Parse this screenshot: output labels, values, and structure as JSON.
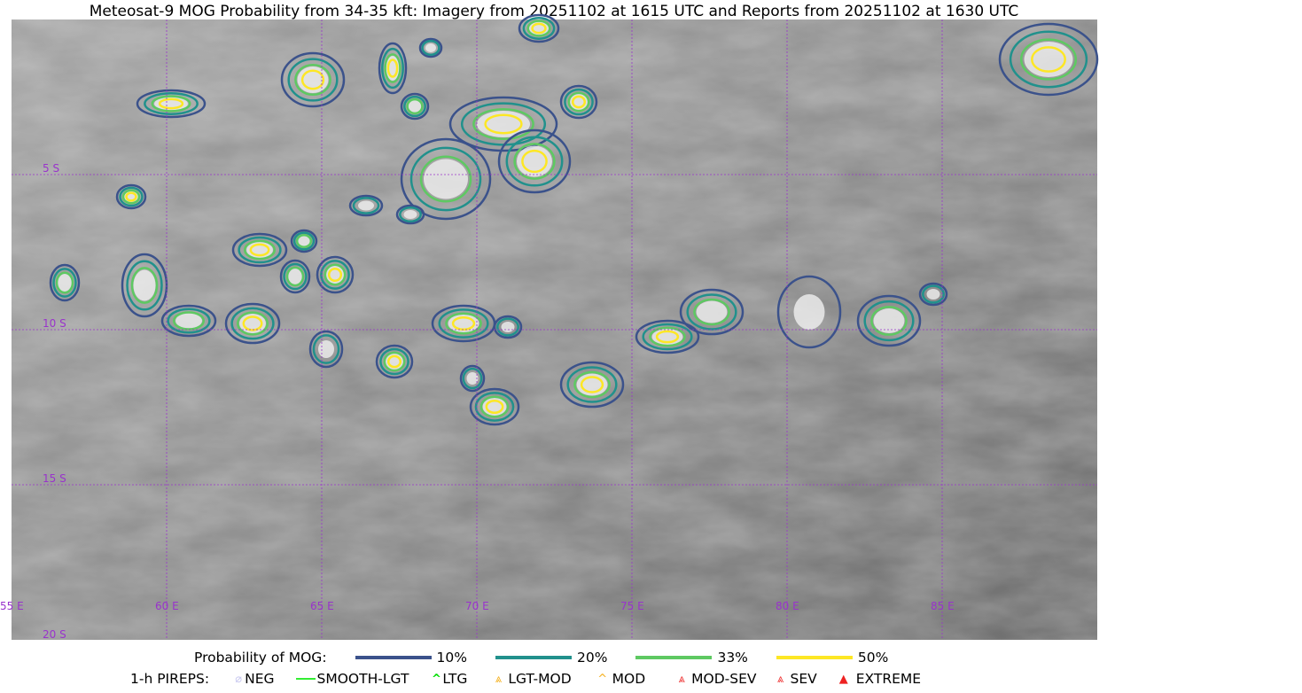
{
  "title": "Meteosat-9 MOG Probability from 34-35 kft: Imagery from 20251102 at 1615 UTC and Reports from 20251102 at 1630 UTC",
  "map": {
    "lon_labels": [
      "55 E",
      "60 E",
      "65 E",
      "70 E",
      "75 E",
      "80 E",
      "85 E"
    ],
    "lat_labels": [
      "5 S",
      "10 S",
      "15 S",
      "20 S"
    ],
    "grid_color": "#9933cc"
  },
  "legend": {
    "probability_label": "Probability of MOG:",
    "levels": [
      {
        "label": "10%",
        "color": "#3b528b"
      },
      {
        "label": "20%",
        "color": "#21918c"
      },
      {
        "label": "33%",
        "color": "#5ec962"
      },
      {
        "label": "50%",
        "color": "#fde725"
      }
    ],
    "pireps_label": "1-h PIREPS:",
    "pireps": [
      {
        "label": "NEG",
        "icon": "neg-icon",
        "color": "#c8c8f0"
      },
      {
        "label": "SMOOTH-LGT",
        "icon": "smooth-lgt-line-icon",
        "color": "#33ee33"
      },
      {
        "label": "LTG",
        "icon": "ltg-caret-icon",
        "color": "#00dd00"
      },
      {
        "label": "LGT-MOD",
        "icon": "lgt-mod-caret-icon",
        "color": "#f5b222"
      },
      {
        "label": "MOD",
        "icon": "mod-caret-icon",
        "color": "#f5b222"
      },
      {
        "label": "MOD-SEV",
        "icon": "mod-sev-caret-icon",
        "color": "#ee3333"
      },
      {
        "label": "SEV",
        "icon": "sev-caret-icon",
        "color": "#ee3333"
      },
      {
        "label": "EXTREME",
        "icon": "extreme-triangle-icon",
        "color": "#ee2222"
      }
    ]
  }
}
